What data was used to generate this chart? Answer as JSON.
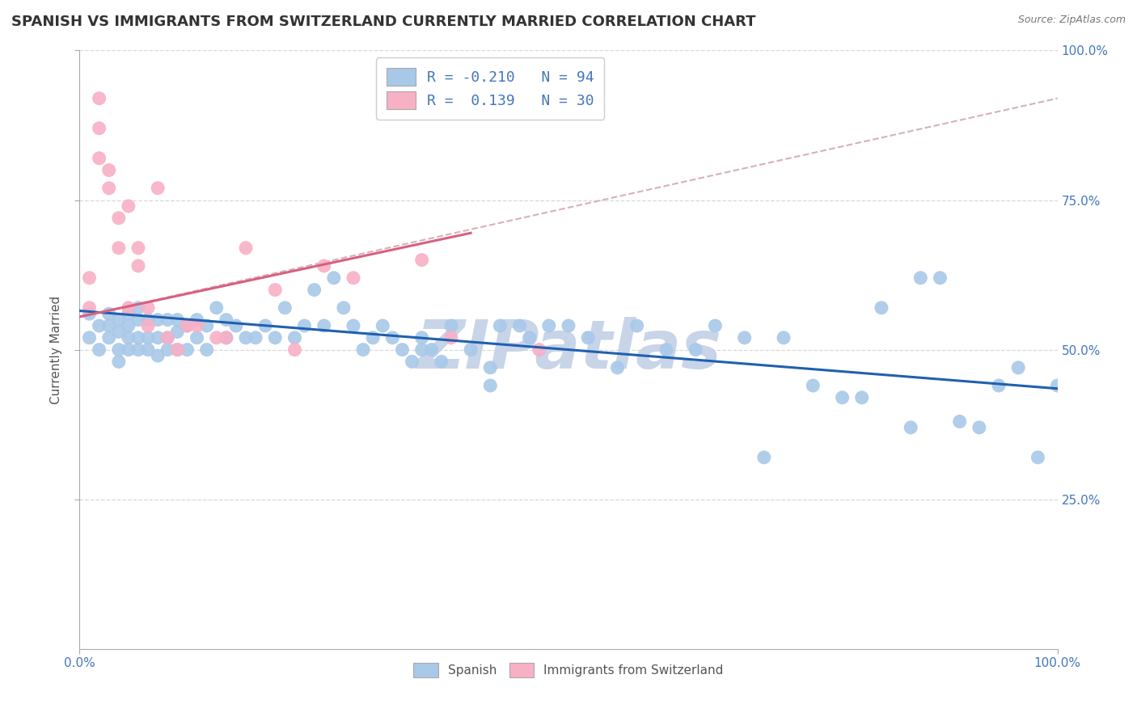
{
  "title": "SPANISH VS IMMIGRANTS FROM SWITZERLAND CURRENTLY MARRIED CORRELATION CHART",
  "source": "Source: ZipAtlas.com",
  "ylabel": "Currently Married",
  "xlim": [
    0.0,
    1.0
  ],
  "ylim": [
    0.0,
    1.0
  ],
  "watermark": "ZIPatlas",
  "legend_R_N": [
    {
      "R": "-0.210",
      "N": "94",
      "color": "#a8c8e8"
    },
    {
      "R": " 0.139",
      "N": "30",
      "color": "#f8b8c8"
    }
  ],
  "blue_scatter_x": [
    0.01,
    0.01,
    0.02,
    0.02,
    0.03,
    0.03,
    0.03,
    0.04,
    0.04,
    0.04,
    0.04,
    0.05,
    0.05,
    0.05,
    0.05,
    0.06,
    0.06,
    0.06,
    0.06,
    0.07,
    0.07,
    0.07,
    0.08,
    0.08,
    0.08,
    0.09,
    0.09,
    0.09,
    0.1,
    0.1,
    0.1,
    0.11,
    0.11,
    0.12,
    0.12,
    0.13,
    0.13,
    0.14,
    0.15,
    0.15,
    0.16,
    0.17,
    0.18,
    0.19,
    0.2,
    0.21,
    0.22,
    0.23,
    0.24,
    0.25,
    0.26,
    0.27,
    0.28,
    0.29,
    0.3,
    0.31,
    0.32,
    0.33,
    0.34,
    0.35,
    0.36,
    0.37,
    0.38,
    0.4,
    0.42,
    0.43,
    0.45,
    0.46,
    0.48,
    0.5,
    0.52,
    0.55,
    0.57,
    0.6,
    0.63,
    0.65,
    0.68,
    0.7,
    0.72,
    0.75,
    0.78,
    0.8,
    0.82,
    0.85,
    0.86,
    0.88,
    0.9,
    0.92,
    0.94,
    0.96,
    0.98,
    1.0,
    0.35,
    0.42
  ],
  "blue_scatter_y": [
    0.56,
    0.52,
    0.54,
    0.5,
    0.56,
    0.54,
    0.52,
    0.55,
    0.53,
    0.5,
    0.48,
    0.56,
    0.54,
    0.52,
    0.5,
    0.57,
    0.55,
    0.52,
    0.5,
    0.55,
    0.52,
    0.5,
    0.55,
    0.52,
    0.49,
    0.55,
    0.52,
    0.5,
    0.55,
    0.53,
    0.5,
    0.54,
    0.5,
    0.55,
    0.52,
    0.54,
    0.5,
    0.57,
    0.55,
    0.52,
    0.54,
    0.52,
    0.52,
    0.54,
    0.52,
    0.57,
    0.52,
    0.54,
    0.6,
    0.54,
    0.62,
    0.57,
    0.54,
    0.5,
    0.52,
    0.54,
    0.52,
    0.5,
    0.48,
    0.52,
    0.5,
    0.48,
    0.54,
    0.5,
    0.44,
    0.54,
    0.54,
    0.52,
    0.54,
    0.54,
    0.52,
    0.47,
    0.54,
    0.5,
    0.5,
    0.54,
    0.52,
    0.32,
    0.52,
    0.44,
    0.42,
    0.42,
    0.57,
    0.37,
    0.62,
    0.62,
    0.38,
    0.37,
    0.44,
    0.47,
    0.32,
    0.44,
    0.5,
    0.47
  ],
  "pink_scatter_x": [
    0.01,
    0.01,
    0.02,
    0.02,
    0.02,
    0.03,
    0.03,
    0.04,
    0.04,
    0.05,
    0.05,
    0.06,
    0.06,
    0.07,
    0.07,
    0.08,
    0.09,
    0.1,
    0.11,
    0.12,
    0.14,
    0.15,
    0.17,
    0.2,
    0.22,
    0.25,
    0.28,
    0.35,
    0.38,
    0.47
  ],
  "pink_scatter_y": [
    0.57,
    0.62,
    0.87,
    0.92,
    0.82,
    0.77,
    0.8,
    0.72,
    0.67,
    0.57,
    0.74,
    0.64,
    0.67,
    0.54,
    0.57,
    0.77,
    0.52,
    0.5,
    0.54,
    0.54,
    0.52,
    0.52,
    0.67,
    0.6,
    0.5,
    0.64,
    0.62,
    0.65,
    0.52,
    0.5
  ],
  "blue_line_x": [
    0.0,
    1.0
  ],
  "blue_line_y": [
    0.565,
    0.435
  ],
  "pink_line_x": [
    0.0,
    0.4
  ],
  "pink_line_y": [
    0.555,
    0.695
  ],
  "dashed_line_x": [
    0.0,
    1.0
  ],
  "dashed_line_y": [
    0.555,
    0.92
  ],
  "blue_scatter_color": "#a8c8e8",
  "pink_scatter_color": "#f8b0c5",
  "blue_line_color": "#2060b0",
  "pink_line_color": "#d86080",
  "dashed_line_color": "#d8b0b8",
  "grid_color": "#d8d8d8",
  "background_color": "#ffffff",
  "title_fontsize": 13,
  "axis_label_fontsize": 11,
  "tick_fontsize": 11,
  "watermark_color": "#c8d4e8",
  "watermark_fontsize": 60
}
